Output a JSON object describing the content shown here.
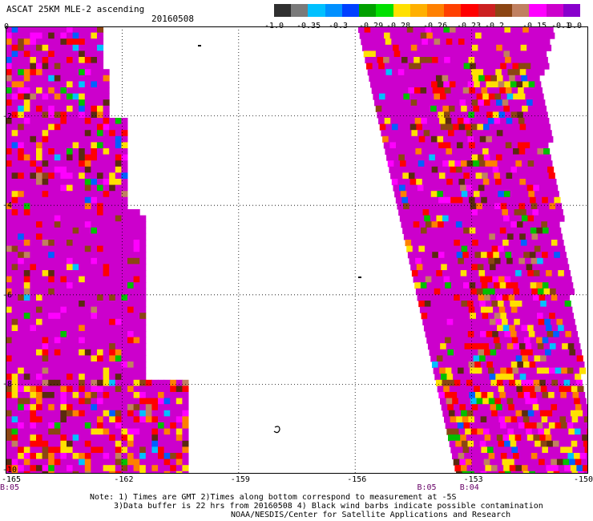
{
  "title": "ASCAT 25KM MLE-2 ascending",
  "date": "20160508",
  "colorbar": {
    "labels": [
      "-1.0",
      "-0.35",
      "-0.3",
      "-0.29",
      "-0.28",
      "-0.26",
      "-0.23",
      "-0.2",
      "-0.15",
      "-0.1",
      "0.0"
    ],
    "colors": [
      "#303030",
      "#7a7a7a",
      "#00c0ff",
      "#0090ff",
      "#0040ff",
      "#00a000",
      "#00e000",
      "#ffe000",
      "#ffb000",
      "#ff8000",
      "#ff4000",
      "#ff0000",
      "#cc2020",
      "#8b4513",
      "#c08060",
      "#ff00ff",
      "#cc00cc",
      "#8800cc"
    ]
  },
  "map": {
    "lon_ticks": [
      "-165",
      "-162",
      "-159",
      "-156",
      "-153",
      "-150"
    ],
    "lat_ticks": [
      "0",
      "-2",
      "-4",
      "-6",
      "-8",
      "-10"
    ],
    "lon_range": [
      -165,
      -150
    ],
    "lat_range": [
      0,
      -10
    ],
    "time_labels": [
      {
        "text": "B:05",
        "lon": -165
      },
      {
        "text": "B:05",
        "lon": -154.2
      },
      {
        "text": "B:04",
        "lon": -153.1
      }
    ]
  },
  "notes": [
    "Note: 1) Times are GMT 2)Times along bottom correspond to measurement at -5S",
    "3)Data buffer is 22 hrs from 20160508 4) Black wind barbs indicate possible contamination",
    "NOAA/NESDIS/Center for Satellite Applications and Research"
  ]
}
